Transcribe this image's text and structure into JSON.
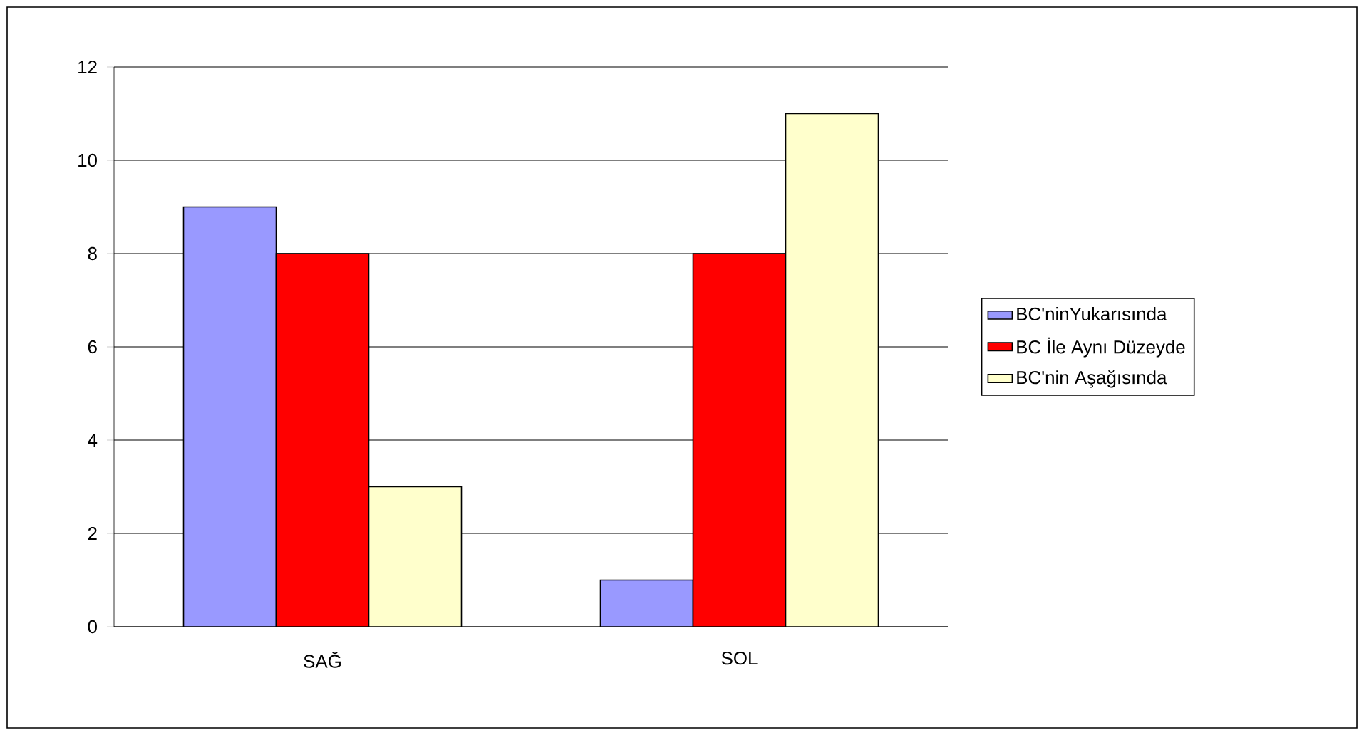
{
  "chart_data": {
    "type": "bar",
    "categories": [
      "SAĞ",
      "SOL"
    ],
    "series": [
      {
        "name": "BC'ninYukarısında",
        "color": "#9999ff",
        "values": [
          9,
          1
        ]
      },
      {
        "name": "BC İle Aynı Düzeyde",
        "color": "#ff0000",
        "values": [
          8,
          8
        ]
      },
      {
        "name": "BC'nin Aşağısında",
        "color": "#ffffcc",
        "values": [
          3,
          11
        ]
      }
    ],
    "ylim": [
      0,
      12
    ],
    "yticks": [
      0,
      2,
      4,
      6,
      8,
      10,
      12
    ],
    "grid": "y",
    "legend": "right"
  }
}
